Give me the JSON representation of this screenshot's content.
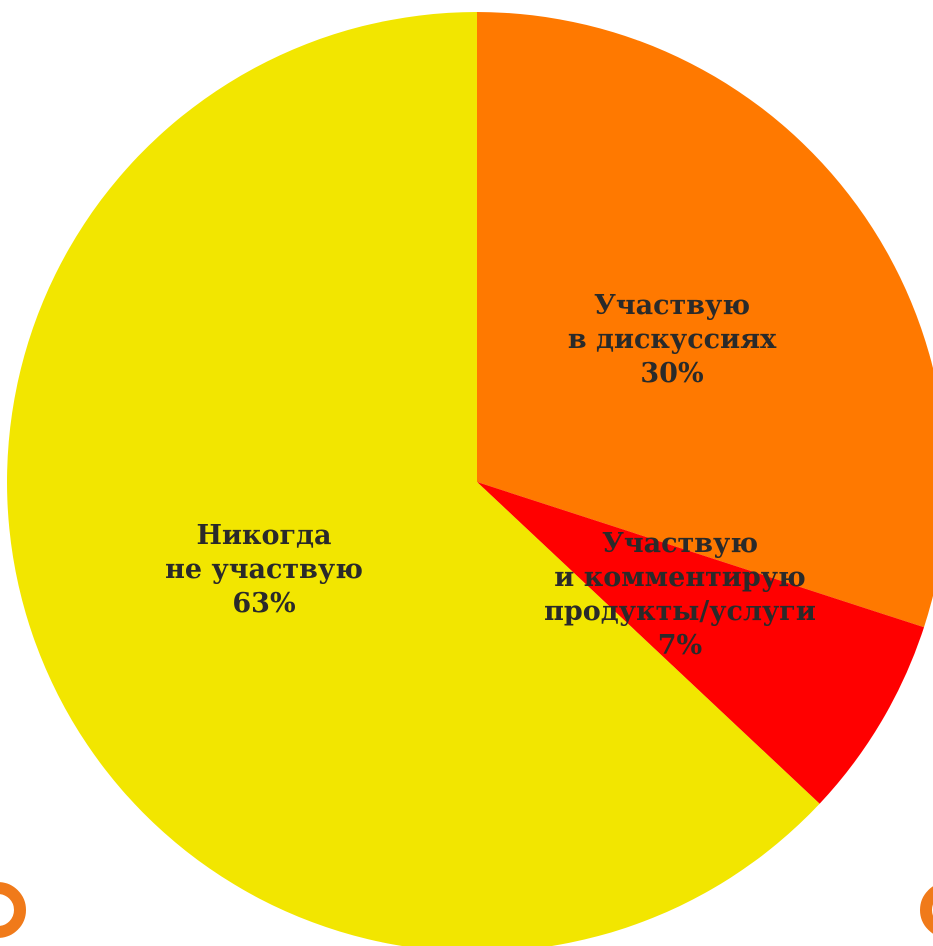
{
  "chart_data": {
    "type": "pie",
    "start_angle_deg": 0,
    "direction": "clockwise",
    "slices": [
      {
        "name": "Участвую в дискуссиях",
        "value": 30,
        "color": "#ff7900",
        "label_lines": [
          "Участвую",
          "в дискуссиях",
          "30%"
        ]
      },
      {
        "name": "Участвую и комментирую продукты/услуги",
        "value": 7,
        "color": "#ff0000",
        "label_lines": [
          "Участвую",
          "и комментирую",
          "продукты/услуги",
          "7%"
        ]
      },
      {
        "name": "Никогда не участвую",
        "value": 63,
        "color": "#f2e600",
        "label_lines": [
          "Никогда",
          "не участвую",
          "63%"
        ]
      }
    ]
  },
  "decor": {
    "corner_mark_color": "#f07a1a",
    "corner_mark_icon": "orange-ring-icon"
  }
}
